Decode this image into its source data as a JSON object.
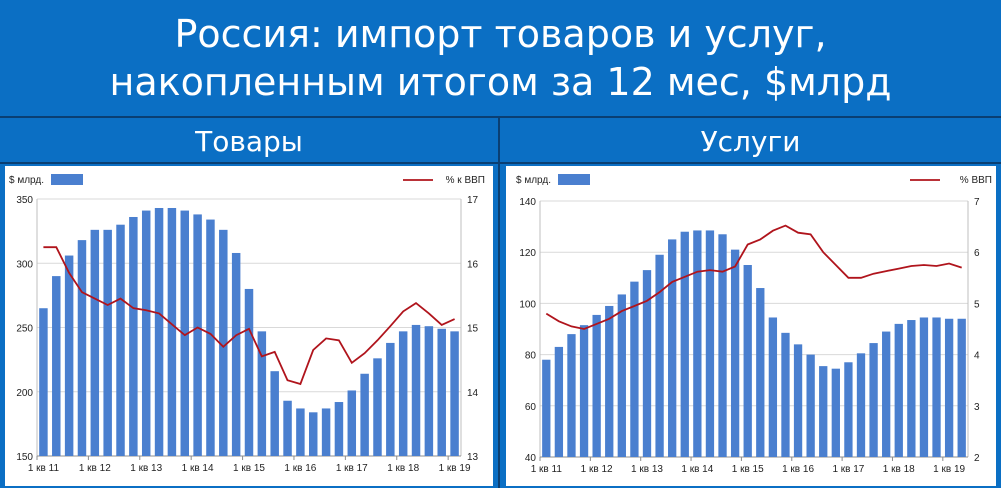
{
  "header": {
    "line1": "Россия: импорт товаров и услуг,",
    "line2": "накопленным итогом за 12 мес, $млрд"
  },
  "colors": {
    "background": "#0b6fc4",
    "bar": "#4a7fcf",
    "line": "#b0141c"
  },
  "chart_data": [
    {
      "type": "bar",
      "panel_title": "Товары",
      "bar_legend": "$ млрд.",
      "line_legend": "% к ВВП",
      "x_tick_labels": [
        "1 кв 11",
        "1 кв 12",
        "1 кв 13",
        "1 кв 14",
        "1 кв 15",
        "1 кв 16",
        "1 кв 17",
        "1 кв 18",
        "1 кв 19"
      ],
      "ylim": [
        150,
        350
      ],
      "y_ticks": [
        150,
        200,
        250,
        300,
        350
      ],
      "y2lim": [
        13,
        17
      ],
      "y2_ticks": [
        13,
        14,
        15,
        16,
        17
      ],
      "series": [
        {
          "name": "$ млрд.",
          "kind": "bar",
          "axis": "left",
          "values": [
            265,
            290,
            306,
            318,
            326,
            326,
            330,
            336,
            341,
            343,
            343,
            341,
            338,
            334,
            326,
            308,
            280,
            247,
            216,
            193,
            187,
            184,
            187,
            192,
            201,
            214,
            226,
            238,
            247,
            252,
            251,
            249,
            247
          ]
        },
        {
          "name": "% к ВВП",
          "kind": "line",
          "axis": "right",
          "values": [
            16.25,
            16.25,
            15.85,
            15.55,
            15.45,
            15.35,
            15.45,
            15.3,
            15.27,
            15.22,
            15.05,
            14.88,
            15.0,
            14.9,
            14.7,
            14.88,
            14.98,
            14.55,
            14.62,
            14.18,
            14.12,
            14.65,
            14.83,
            14.8,
            14.45,
            14.6,
            14.8,
            15.02,
            15.25,
            15.38,
            15.22,
            15.04,
            15.13
          ]
        }
      ]
    },
    {
      "type": "bar",
      "panel_title": "Услуги",
      "bar_legend": "$ млрд.",
      "line_legend": "% ВВП",
      "x_tick_labels": [
        "1 кв 11",
        "1 кв 12",
        "1 кв 13",
        "1 кв 14",
        "1 кв 15",
        "1 кв 16",
        "1 кв 17",
        "1 кв 18",
        "1 кв 19"
      ],
      "ylim": [
        40,
        140
      ],
      "y_ticks": [
        40,
        60,
        80,
        100,
        120,
        140
      ],
      "y2lim": [
        2,
        7
      ],
      "y2_ticks": [
        2,
        3,
        4,
        5,
        6,
        7
      ],
      "series": [
        {
          "name": "$ млрд.",
          "kind": "bar",
          "axis": "left",
          "values": [
            78,
            83,
            88,
            91.5,
            95.5,
            99,
            103.5,
            108.5,
            113,
            119,
            125,
            128,
            128.5,
            128.5,
            127,
            121,
            115,
            106,
            94.5,
            88.5,
            84,
            80,
            75.5,
            74.5,
            77,
            80.5,
            84.5,
            89,
            92,
            93.5,
            94.5,
            94.5,
            94,
            94
          ]
        },
        {
          "name": "% ВВП",
          "kind": "line",
          "axis": "right",
          "values": [
            4.8,
            4.65,
            4.55,
            4.5,
            4.6,
            4.7,
            4.85,
            4.95,
            5.05,
            5.22,
            5.42,
            5.52,
            5.62,
            5.65,
            5.62,
            5.72,
            6.15,
            6.25,
            6.42,
            6.52,
            6.38,
            6.35,
            6.0,
            5.75,
            5.5,
            5.5,
            5.58,
            5.63,
            5.68,
            5.73,
            5.75,
            5.73,
            5.78,
            5.7
          ]
        }
      ]
    }
  ]
}
